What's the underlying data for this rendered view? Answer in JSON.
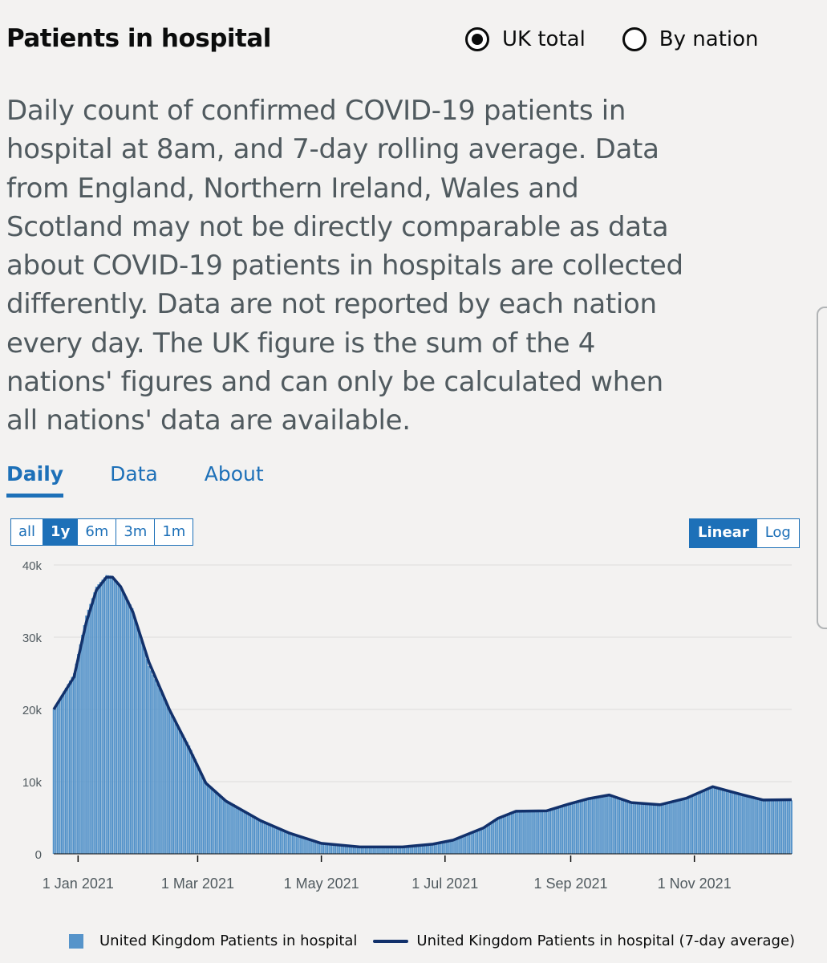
{
  "header": {
    "title": "Patients in hospital"
  },
  "radios": [
    {
      "label": "UK total",
      "checked": true
    },
    {
      "label": "By nation",
      "checked": false
    }
  ],
  "description": "Daily count of confirmed COVID-19 patients in hospital at 8am, and 7-day rolling average. Data from England, Northern Ireland, Wales and Scotland may not be directly comparable as data about COVID-19 patients in hospitals are collected differently. Data are not reported by each nation every day. The UK figure is the sum of the 4 nations' figures and can only be calculated when all nations' data are available.",
  "tabs": [
    {
      "label": "Daily",
      "active": true
    },
    {
      "label": "Data",
      "active": false
    },
    {
      "label": "About",
      "active": false
    }
  ],
  "range_buttons": [
    {
      "label": "all",
      "active": false
    },
    {
      "label": "1y",
      "active": true
    },
    {
      "label": "6m",
      "active": false
    },
    {
      "label": "3m",
      "active": false
    },
    {
      "label": "1m",
      "active": false
    }
  ],
  "scale_buttons": [
    {
      "label": "Linear",
      "active": true
    },
    {
      "label": "Log",
      "active": false
    }
  ],
  "legend": {
    "bars": "United Kingdom Patients in hospital",
    "line": "United Kingdom Patients in hospital (7-day average)"
  },
  "colors": {
    "bars": "#5694ca",
    "line": "#12316b",
    "accent": "#1d70b8"
  },
  "chart_data": {
    "type": "bar",
    "ylim": [
      0,
      40000
    ],
    "yticks": [
      "0",
      "10k",
      "20k",
      "30k",
      "40k"
    ],
    "ytick_values": [
      0,
      10000,
      20000,
      30000,
      40000
    ],
    "xticks": [
      "1 Jan 2021",
      "1 Mar 2021",
      "1 May 2021",
      "1 Jul 2021",
      "1 Sep 2021",
      "1 Nov 2021"
    ],
    "xtick_dates": [
      "2021-01-01",
      "2021-03-01",
      "2021-05-01",
      "2021-07-01",
      "2021-09-01",
      "2021-11-01"
    ],
    "x_range": [
      "2020-12-20",
      "2021-12-19"
    ],
    "grid": true,
    "legend_position": "bottom",
    "series": [
      {
        "name": "United Kingdom Patients in hospital",
        "type": "bar",
        "x": [
          "2020-12-20",
          "2020-12-30",
          "2021-01-05",
          "2021-01-10",
          "2021-01-15",
          "2021-01-18",
          "2021-01-22",
          "2021-01-28",
          "2021-02-05",
          "2021-02-15",
          "2021-02-25",
          "2021-03-05",
          "2021-03-15",
          "2021-04-01",
          "2021-04-15",
          "2021-05-01",
          "2021-05-20",
          "2021-06-10",
          "2021-06-25",
          "2021-07-05",
          "2021-07-20",
          "2021-07-27",
          "2021-08-05",
          "2021-08-20",
          "2021-08-31",
          "2021-09-10",
          "2021-09-20",
          "2021-10-01",
          "2021-10-15",
          "2021-10-28",
          "2021-11-10",
          "2021-11-25",
          "2021-12-05",
          "2021-12-19"
        ],
        "values": [
          20000,
          25000,
          33000,
          37000,
          38600,
          38500,
          37200,
          34000,
          26000,
          20000,
          15000,
          10000,
          7500,
          4800,
          3000,
          1500,
          900,
          900,
          1300,
          1800,
          3500,
          4800,
          5900,
          6000,
          6800,
          7600,
          8200,
          7200,
          6800,
          7600,
          9400,
          8200,
          7400,
          7400
        ]
      },
      {
        "name": "United Kingdom Patients in hospital (7-day average)",
        "type": "line",
        "x": [
          "2020-12-20",
          "2020-12-30",
          "2021-01-05",
          "2021-01-10",
          "2021-01-15",
          "2021-01-18",
          "2021-01-22",
          "2021-01-28",
          "2021-02-05",
          "2021-02-15",
          "2021-02-25",
          "2021-03-05",
          "2021-03-15",
          "2021-04-01",
          "2021-04-15",
          "2021-05-01",
          "2021-05-20",
          "2021-06-10",
          "2021-06-25",
          "2021-07-05",
          "2021-07-20",
          "2021-07-27",
          "2021-08-05",
          "2021-08-20",
          "2021-08-31",
          "2021-09-10",
          "2021-09-20",
          "2021-10-01",
          "2021-10-15",
          "2021-10-28",
          "2021-11-10",
          "2021-11-25",
          "2021-12-05",
          "2021-12-19"
        ],
        "values": [
          20000,
          24500,
          32000,
          36500,
          38300,
          38300,
          37000,
          33500,
          26500,
          20000,
          14500,
          9800,
          7300,
          4600,
          2900,
          1450,
          950,
          950,
          1350,
          1900,
          3600,
          4900,
          5900,
          5950,
          6900,
          7650,
          8150,
          7100,
          6800,
          7700,
          9300,
          8150,
          7450,
          7500
        ]
      }
    ]
  }
}
